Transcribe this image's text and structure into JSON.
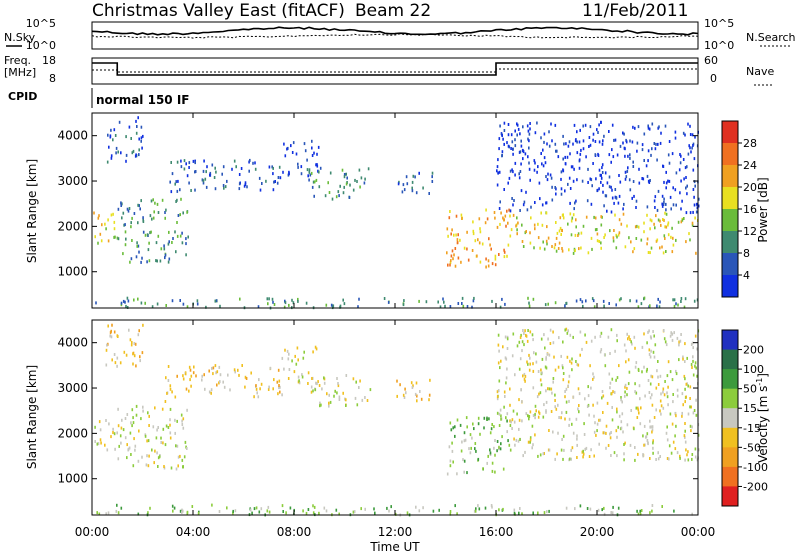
{
  "header": {
    "site": "Christmas Valley East (fitACF)",
    "beam": "Beam 22",
    "date": "11/Feb/2011"
  },
  "noise_panel": {
    "left_label": "N.Sky",
    "right_label": "N.Search",
    "tick_top": "10^5",
    "tick_bottom": "10^0"
  },
  "freq_panel": {
    "left_label_1": "Freq.",
    "left_label_2": "[MHz]",
    "right_label": "Nave",
    "left_ticks": [
      "18",
      "8"
    ],
    "right_ticks": [
      "60",
      "0"
    ]
  },
  "cpid": {
    "label": "CPID",
    "value": "normal 150 IF"
  },
  "chart_data": [
    {
      "type": "heatmap",
      "name": "power",
      "ylabel": "Slant Range [km]",
      "yticks": [
        "1000",
        "2000",
        "3000",
        "4000"
      ],
      "ylim": [
        200,
        4500
      ],
      "colorbar_label": "Power [dB]",
      "colorbar_ticks": [
        "4",
        "8",
        "12",
        "16",
        "20",
        "24",
        "28"
      ],
      "colors": [
        "#1030e0",
        "#2a56b8",
        "#3f8a70",
        "#6abc3a",
        "#e8e020",
        "#f0a020",
        "#f07020",
        "#e03020"
      ],
      "regions": [
        {
          "t0": 0.0,
          "t1": 1.1,
          "r0": 1600,
          "r1": 2300,
          "level": 4
        },
        {
          "t0": 1.0,
          "t1": 3.8,
          "r0": 1200,
          "r1": 2600,
          "level": 2
        },
        {
          "t0": 2.8,
          "t1": 4.1,
          "r0": 2700,
          "r1": 3500,
          "level": 1
        },
        {
          "t0": 4.3,
          "t1": 7.5,
          "r0": 2800,
          "r1": 3500,
          "level": 1
        },
        {
          "t0": 7.5,
          "t1": 9.0,
          "r0": 3100,
          "r1": 3900,
          "level": 0
        },
        {
          "t0": 8.5,
          "t1": 11.0,
          "r0": 2600,
          "r1": 3300,
          "level": 2
        },
        {
          "t0": 12.0,
          "t1": 13.5,
          "r0": 2700,
          "r1": 3200,
          "level": 1
        },
        {
          "t0": 14.0,
          "t1": 16.5,
          "r0": 1100,
          "r1": 2400,
          "level": 5
        },
        {
          "t0": 16.5,
          "t1": 24.0,
          "r0": 1400,
          "r1": 2300,
          "level": 4
        },
        {
          "t0": 16.0,
          "t1": 24.0,
          "r0": 2300,
          "r1": 4300,
          "level": 0
        },
        {
          "t0": 0.5,
          "t1": 2.0,
          "r0": 3400,
          "r1": 4400,
          "level": 1
        },
        {
          "t0": 0.0,
          "t1": 24.0,
          "r0": 200,
          "r1": 420,
          "level": 2
        }
      ]
    },
    {
      "type": "heatmap",
      "name": "velocity",
      "ylabel": "Slant Range [km]",
      "yticks": [
        "1000",
        "2000",
        "3000",
        "4000"
      ],
      "ylim": [
        200,
        4500
      ],
      "colorbar_label": "Velocity [m s",
      "colorbar_label_sup": "-1",
      "colorbar_label_end": "]",
      "colorbar_ticks": [
        "200",
        "100",
        "50",
        "15",
        "-15",
        "-50",
        "-100",
        "-200"
      ],
      "colors": [
        "#2030c0",
        "#2a7048",
        "#3c9a3c",
        "#8ccc3c",
        "#c8c8c0",
        "#f0c020",
        "#f0a020",
        "#f07020",
        "#e02020"
      ],
      "regions": [
        {
          "t0": 0.0,
          "t1": 1.1,
          "r0": 1600,
          "r1": 2300,
          "level": 4
        },
        {
          "t0": 1.0,
          "t1": 3.8,
          "r0": 1200,
          "r1": 2600,
          "level": 4
        },
        {
          "t0": 2.8,
          "t1": 4.1,
          "r0": 2700,
          "r1": 3500,
          "level": 5
        },
        {
          "t0": 4.3,
          "t1": 7.5,
          "r0": 2800,
          "r1": 3500,
          "level": 5
        },
        {
          "t0": 7.5,
          "t1": 9.0,
          "r0": 3100,
          "r1": 3900,
          "level": 4
        },
        {
          "t0": 8.5,
          "t1": 11.0,
          "r0": 2600,
          "r1": 3300,
          "level": 4
        },
        {
          "t0": 12.0,
          "t1": 13.5,
          "r0": 2700,
          "r1": 3200,
          "level": 5
        },
        {
          "t0": 14.0,
          "t1": 16.5,
          "r0": 1100,
          "r1": 2400,
          "level": 3
        },
        {
          "t0": 16.5,
          "t1": 24.0,
          "r0": 1400,
          "r1": 2300,
          "level": 4
        },
        {
          "t0": 16.0,
          "t1": 24.0,
          "r0": 2300,
          "r1": 4300,
          "level": 4
        },
        {
          "t0": 0.5,
          "t1": 2.0,
          "r0": 3400,
          "r1": 4400,
          "level": 5
        },
        {
          "t0": 0.0,
          "t1": 24.0,
          "r0": 200,
          "r1": 420,
          "level": 3
        }
      ]
    }
  ],
  "x_axis": {
    "ticks": [
      "00:00",
      "04:00",
      "08:00",
      "12:00",
      "16:00",
      "20:00",
      "00:00"
    ],
    "label": "Time UT",
    "range_hours": [
      0,
      24
    ]
  }
}
